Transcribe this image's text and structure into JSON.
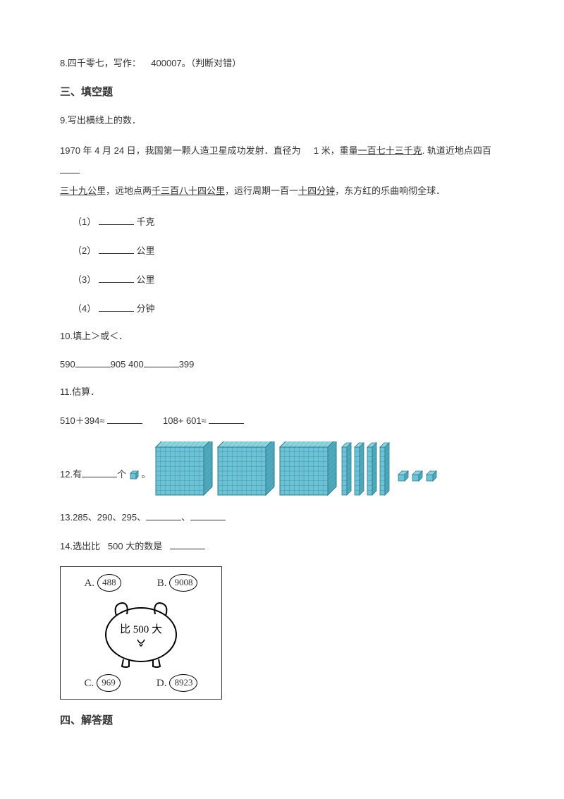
{
  "q8": {
    "text_a": "8.四千零七，写作：",
    "text_b": "400007。（判断对错）"
  },
  "section3": "三、填空题",
  "q9": {
    "lead": "9.写出横线上的数．",
    "p1_a": "1970 年 4 月 24 日，我国第一颗人造卫星成功发射．直径为",
    "p1_b": "1 米，重量",
    "u1": "一百七十三千克",
    "p1_c": ". 轨道近地点四百",
    "u2a": "三十九公",
    "p2_a": "里，远地点两",
    "u2b": "千三百八十四公里",
    "p2_b": "，运行周期一百一",
    "u3": "十四分钟",
    "p2_c": "，东方红的乐曲响彻全球．",
    "i1": "（1）",
    "u_kg": "千克",
    "i2": "（2）",
    "u_km1": "公里",
    "i3": "（3）",
    "u_km2": "公里",
    "i4": "（4）",
    "u_min": "分钟"
  },
  "q10": {
    "lead": "10.填上＞或＜．",
    "a": "590",
    "b": "905 400",
    "c": "399"
  },
  "q11": {
    "lead": "11.估算．",
    "e1": "510＋394≈",
    "e2": "108+ 601≈"
  },
  "q12": {
    "a": "12.有",
    "b": "个"
  },
  "q13": {
    "a": "13.285、290、295、",
    "sep": "、"
  },
  "q14": {
    "lead": "14.选出比",
    "mid": "500 大的数是",
    "optA": "A.",
    "valA": "488",
    "optB": "B.",
    "valB": "9008",
    "pig": "比 500 大",
    "optC": "C.",
    "valC": "969",
    "optD": "D.",
    "valD": "8923"
  },
  "section4": "四、解答题",
  "blocks": {
    "cube_fill": "#6cc3d5",
    "cube_stroke": "#2a7a8c",
    "hundreds": 3,
    "tens": 4,
    "ones": 3
  }
}
